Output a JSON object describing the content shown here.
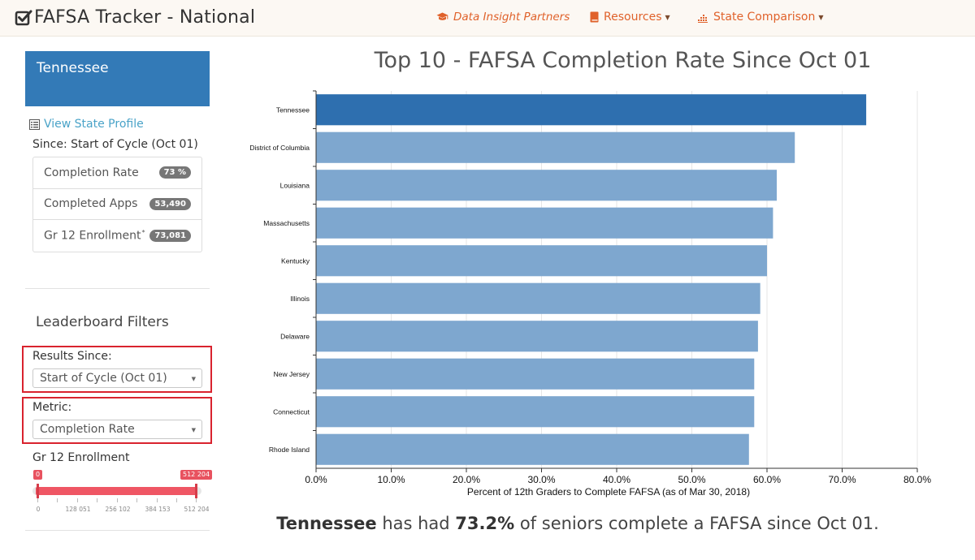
{
  "navbar": {
    "brand": "FAFSA Tracker - National",
    "partners": "Data Insight Partners",
    "resources": "Resources",
    "state_comparison": "State Comparison"
  },
  "sidebar": {
    "state_name": "Tennessee",
    "profile_link": "View State Profile",
    "since_label": "Since: Start of Cycle (Oct 01)",
    "stats": [
      {
        "label": "Completion Rate",
        "value": "73 %"
      },
      {
        "label": "Completed Apps",
        "value": "53,490"
      },
      {
        "label": "Gr 12 Enrollment",
        "value": "73,081",
        "note": "*"
      }
    ],
    "filters_title": "Leaderboard Filters",
    "results_since_label": "Results Since:",
    "results_since_value": "Start of Cycle (Oct 01)",
    "metric_label": "Metric:",
    "metric_value": "Completion Rate",
    "enrollment_label": "Gr 12 Enrollment",
    "enrollment_slider": {
      "min_value": "0",
      "max_value": "512 204",
      "ticks": [
        "0",
        "128 051",
        "256 102",
        "384 153",
        "512 204"
      ]
    }
  },
  "chart_title": "Top 10 - FAFSA Completion Rate Since Oct 01",
  "chart_data": {
    "type": "bar",
    "orientation": "horizontal",
    "categories": [
      "Tennessee",
      "District of Columbia",
      "Louisiana",
      "Massachusetts",
      "Kentucky",
      "Illinois",
      "Delaware",
      "New Jersey",
      "Connecticut",
      "Rhode Island"
    ],
    "values": [
      73.2,
      63.7,
      61.3,
      60.8,
      60.0,
      59.1,
      58.8,
      58.3,
      58.3,
      57.6
    ],
    "highlight": "Tennessee",
    "xlabel": "Percent of 12th Graders to Complete FAFSA (as of Mar 30, 2018)",
    "ylabel": "",
    "xlim": [
      0,
      80
    ],
    "xticks": [
      "0.0%",
      "10.0%",
      "20.0%",
      "30.0%",
      "40.0%",
      "50.0%",
      "60.0%",
      "70.0%",
      "80.0%"
    ],
    "grid": true,
    "colors": {
      "highlight": "#2e6faf",
      "default": "#7ea7cf"
    }
  },
  "conclusion": {
    "state": "Tennessee",
    "text1": " has had ",
    "rate": "73.2%",
    "text2": " of seniors complete a FAFSA since Oct 01."
  }
}
